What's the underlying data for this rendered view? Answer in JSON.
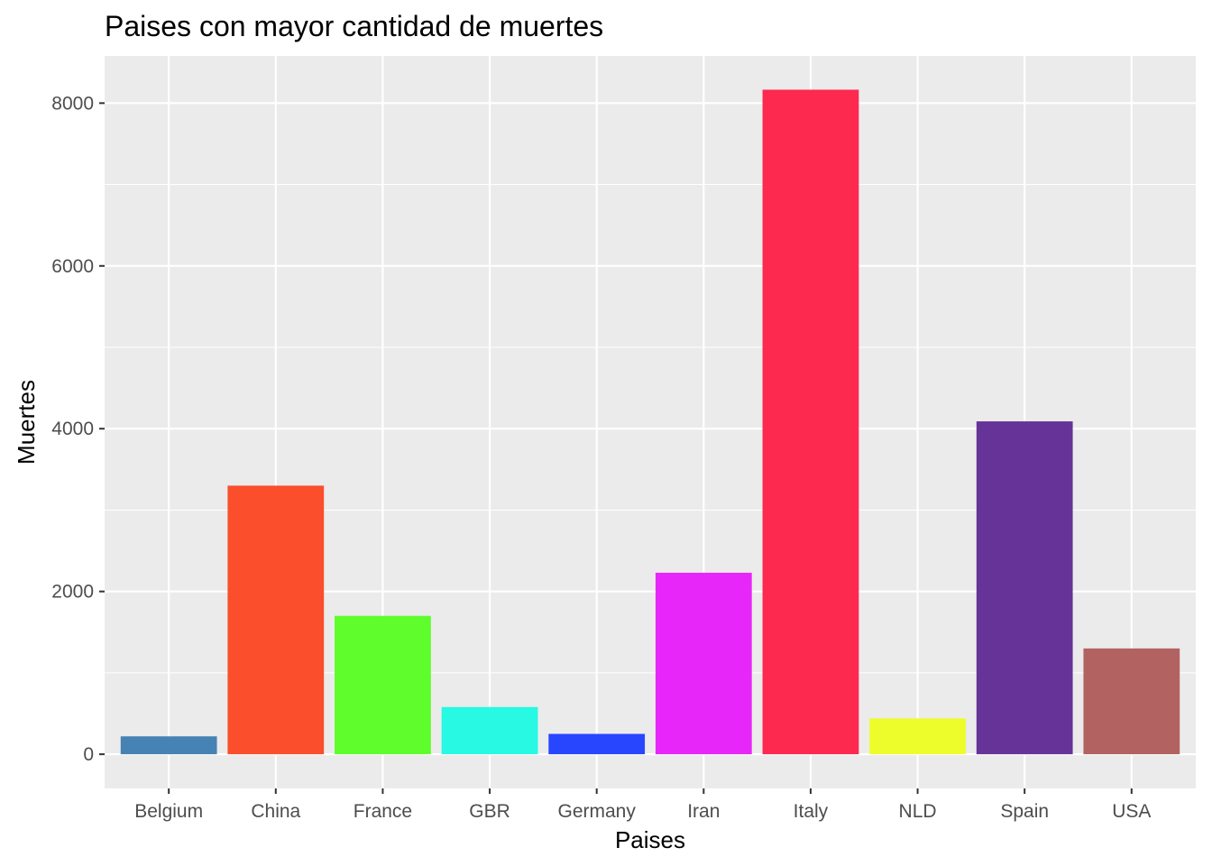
{
  "chart_data": {
    "type": "bar",
    "title": "Paises con mayor cantidad de muertes",
    "xlabel": "Paises",
    "ylabel": "Muertes",
    "categories": [
      "Belgium",
      "China",
      "France",
      "GBR",
      "Germany",
      "Iran",
      "Italy",
      "NLD",
      "Spain",
      "USA"
    ],
    "values": [
      220,
      3300,
      1700,
      580,
      250,
      2230,
      8165,
      440,
      4090,
      1300
    ],
    "colors": [
      "#4682B4",
      "#FA4E2C",
      "#5EFD2B",
      "#27F9E2",
      "#2946FF",
      "#E726F9",
      "#FD294F",
      "#EDFD2B",
      "#663399",
      "#B36262"
    ],
    "ylim": [
      -420,
      8580
    ],
    "yticks": [
      0,
      2000,
      4000,
      6000,
      8000
    ],
    "ytick_labels": [
      "0",
      "2000",
      "4000",
      "6000",
      "8000"
    ],
    "grid": true,
    "panel_background": "#EBEBEB",
    "grid_color": "#FFFFFF",
    "legend": "none"
  }
}
